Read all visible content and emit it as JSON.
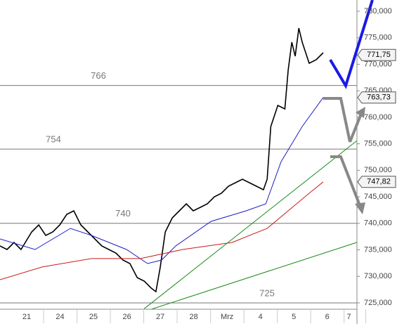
{
  "chart_data": {
    "type": "line",
    "xlim": [
      -0.8,
      9.89
    ],
    "ylim": [
      723.8,
      782.12
    ],
    "xticks": [
      {
        "value": 0,
        "label": "21"
      },
      {
        "value": 1,
        "label": "24"
      },
      {
        "value": 2,
        "label": "25"
      },
      {
        "value": 3,
        "label": "26"
      },
      {
        "value": 4,
        "label": "27"
      },
      {
        "value": 5,
        "label": "28"
      },
      {
        "value": 6,
        "label": "Mrz"
      },
      {
        "value": 7,
        "label": "4"
      },
      {
        "value": 8,
        "label": "5"
      },
      {
        "value": 9,
        "label": "6"
      },
      {
        "value": 9.65,
        "label": "7"
      }
    ],
    "yticks": [
      {
        "value": 725,
        "label": "725,000"
      },
      {
        "value": 730,
        "label": "730,000"
      },
      {
        "value": 735,
        "label": "735,000"
      },
      {
        "value": 740,
        "label": "740,000"
      },
      {
        "value": 745,
        "label": "745,000"
      },
      {
        "value": 750,
        "label": "750,000"
      },
      {
        "value": 755,
        "label": "755,000"
      },
      {
        "value": 760,
        "label": "760,000"
      },
      {
        "value": 765,
        "label": "765,000"
      },
      {
        "value": 770,
        "label": "770,000"
      },
      {
        "value": 775,
        "label": "775,000"
      },
      {
        "value": 780,
        "label": "780,000"
      }
    ],
    "levels": [
      766,
      754,
      740,
      725
    ],
    "callouts": [
      {
        "value": 771.75,
        "label": "771,75"
      },
      {
        "value": 763.73,
        "label": "763,73"
      },
      {
        "value": 747.82,
        "label": "747,82"
      }
    ],
    "series": [
      {
        "color": "#000000",
        "x": [
          -0.8,
          -0.59,
          -0.38,
          -0.17,
          0.15,
          0.36,
          0.57,
          0.78,
          0.99,
          1.2,
          1.41,
          1.62,
          1.83,
          2.04,
          2.25,
          2.46,
          2.67,
          2.88,
          3.09,
          3.31,
          3.52,
          3.73,
          3.87,
          4,
          4.15,
          4.36,
          4.57,
          4.78,
          4.99,
          5.2,
          5.41,
          5.62,
          5.83,
          6.04,
          6.25,
          6.46,
          6.67,
          6.88,
          7.09,
          7.2,
          7.31,
          7.52,
          7.73,
          7.83,
          7.94,
          8.04,
          8.15,
          8.25,
          8.46,
          8.67,
          8.88
        ],
        "values": [
          735.73,
          735.07,
          736.39,
          735.07,
          738.38,
          739.71,
          737.72,
          738.38,
          739.71,
          741.7,
          742.36,
          739.71,
          738.38,
          737.06,
          735.73,
          735.07,
          734.41,
          733.08,
          732.42,
          729.77,
          729.1,
          727.78,
          727.12,
          731.76,
          738.38,
          741.03,
          742.36,
          743.68,
          742.36,
          743.02,
          743.68,
          745.01,
          745.67,
          747,
          747.66,
          748.32,
          747.66,
          747,
          746.33,
          748.32,
          758.26,
          762.24,
          761.58,
          768.87,
          774.17,
          771.52,
          776.82,
          774.17,
          770.19,
          770.85,
          772.18
        ]
      },
      {
        "color": "#1c1cc8",
        "x": [
          -0.8,
          0.25,
          1.31,
          1.94,
          2.99,
          3.62,
          4.04,
          4.46,
          5.52,
          6.57,
          7.16,
          7.62,
          8.25,
          8.88
        ],
        "values": [
          737.06,
          735.07,
          739.04,
          737.72,
          735.07,
          732.42,
          733.08,
          735.73,
          740.37,
          742.36,
          743.68,
          751.64,
          758.26,
          763.73
        ]
      },
      {
        "color": "#c81c1c",
        "x": [
          -0.8,
          0.46,
          1.94,
          3.41,
          4.67,
          6.15,
          7.2,
          7.83,
          8.46,
          8.88
        ],
        "values": [
          729.37,
          731.76,
          733.35,
          733.35,
          735.07,
          736.39,
          739.04,
          742.36,
          745.67,
          747.82
        ]
      },
      {
        "color": "#1a8a1a",
        "x": [
          3.52,
          9.89
        ],
        "values": [
          723.9,
          755.6
        ]
      },
      {
        "color": "#1a8a1a",
        "x": [
          3.73,
          9.89
        ],
        "values": [
          723.8,
          736.4
        ]
      }
    ]
  }
}
